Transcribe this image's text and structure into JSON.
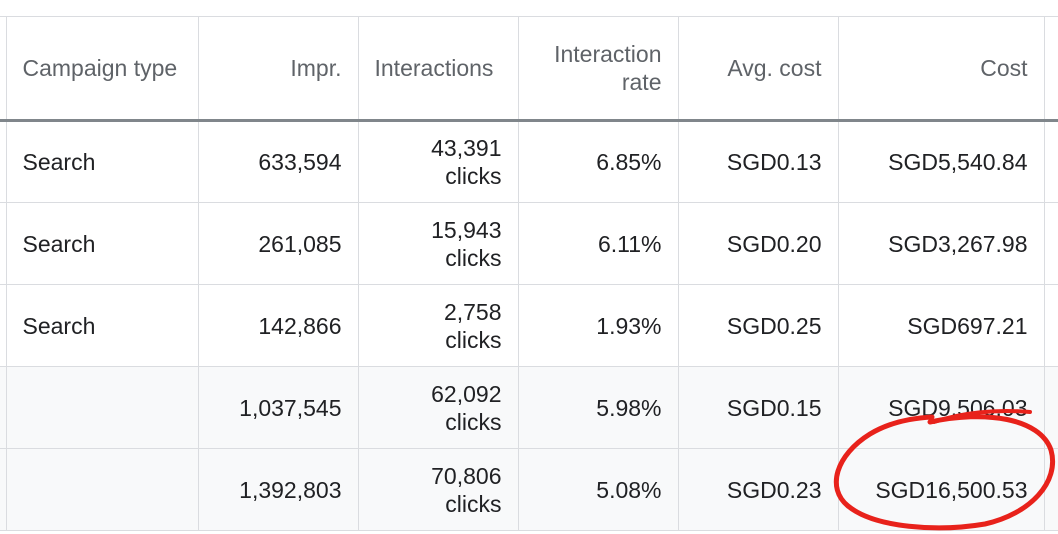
{
  "columns": {
    "campaign_type": "Campaign type",
    "impr": "Impr.",
    "interactions": "Interactions",
    "interaction_rate": "Interaction rate",
    "avg_cost": "Avg. cost",
    "cost": "Cost"
  },
  "rows": [
    {
      "campaign_type": "Search",
      "impr": "633,594",
      "interactions_value": "43,391",
      "interactions_unit": "clicks",
      "interaction_rate": "6.85%",
      "avg_cost": "SGD0.13",
      "cost": "SGD5,540.84"
    },
    {
      "campaign_type": "Search",
      "impr": "261,085",
      "interactions_value": "15,943",
      "interactions_unit": "clicks",
      "interaction_rate": "6.11%",
      "avg_cost": "SGD0.20",
      "cost": "SGD3,267.98"
    },
    {
      "campaign_type": "Search",
      "impr": "142,866",
      "interactions_value": "2,758",
      "interactions_unit": "clicks",
      "interaction_rate": "1.93%",
      "avg_cost": "SGD0.25",
      "cost": "SGD697.21"
    }
  ],
  "totals": [
    {
      "campaign_type": "",
      "impr": "1,037,545",
      "interactions_value": "62,092",
      "interactions_unit": "clicks",
      "interaction_rate": "5.98%",
      "avg_cost": "SGD0.15",
      "cost": "SGD9,506.03"
    },
    {
      "campaign_type": "",
      "impr": "1,392,803",
      "interactions_value": "70,806",
      "interactions_unit": "clicks",
      "interaction_rate": "5.08%",
      "avg_cost": "SGD0.23",
      "cost": "SGD16,500.53"
    }
  ],
  "colors": {
    "header_text": "#5f6368",
    "body_text": "#202124",
    "grid_line": "#dadce0",
    "header_rule": "#80868b",
    "total_row_bg": "#f8f9fa",
    "annotation": "#e8221b"
  }
}
